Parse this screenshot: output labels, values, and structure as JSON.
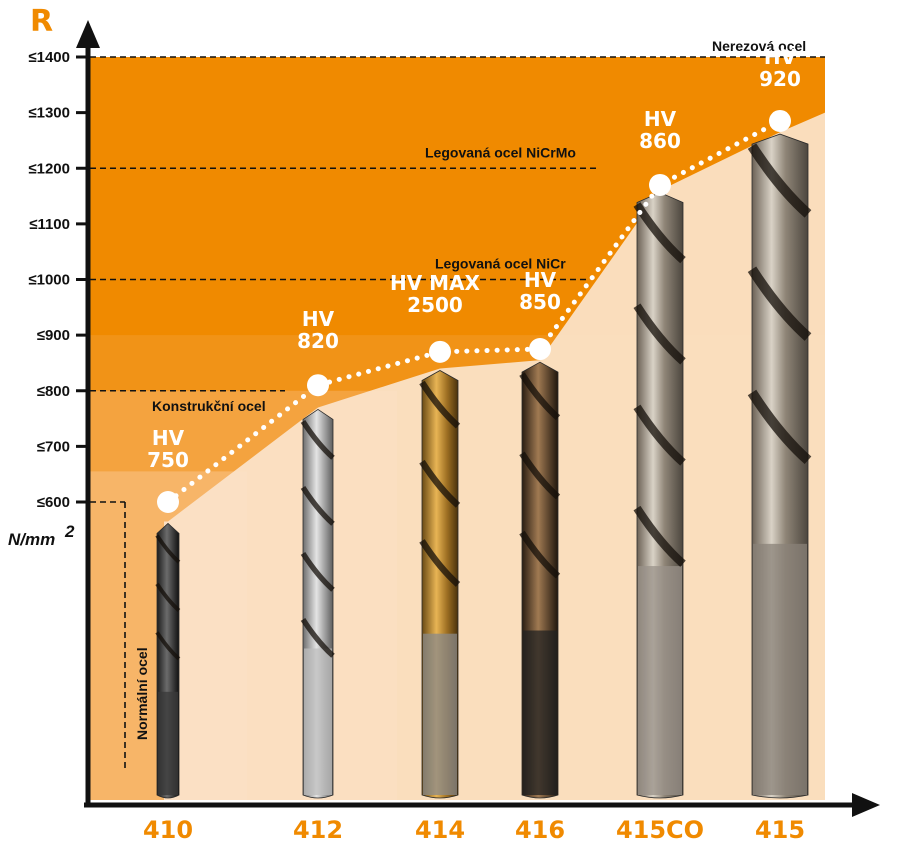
{
  "colors": {
    "accent": "#f08a00",
    "background_light": "#fbe4cc",
    "line": "#ffffff",
    "axis": "#111111"
  },
  "chart_data": {
    "type": "line",
    "y_axis": {
      "title": "R",
      "unit": "N/mm",
      "unit_superscript": "2",
      "ticks": [
        "≤600",
        "≤700",
        "≤800",
        "≤900",
        "≤1000",
        "≤1100",
        "≤1200",
        "≤1300",
        "≤1400"
      ],
      "range": [
        600,
        1400
      ]
    },
    "categories": [
      "410",
      "412",
      "414",
      "416",
      "415CO",
      "415"
    ],
    "series": [
      {
        "values": [
          600,
          810,
          870,
          875,
          1170,
          1285
        ]
      }
    ],
    "point_labels": [
      [
        "HV",
        "750"
      ],
      [
        "HV",
        "820"
      ],
      [
        "HV MAX",
        "2500"
      ],
      [
        "HV",
        "850"
      ],
      [
        "HV",
        "860"
      ],
      [
        "HV",
        "920"
      ]
    ],
    "reference_lines": [
      {
        "value": 600,
        "label": "Normální ocel"
      },
      {
        "value": 800,
        "label": "Konstrukční ocel"
      },
      {
        "value": 1000,
        "label": "Legovaná ocel NiCr"
      },
      {
        "value": 1200,
        "label": "Legovaná ocel NiCrMo"
      },
      {
        "value": 1400,
        "label": "Nerezová ocel"
      }
    ],
    "drill_tops": [
      565,
      770,
      840,
      855,
      1160,
      1265
    ],
    "grid": false,
    "legend": "none"
  }
}
